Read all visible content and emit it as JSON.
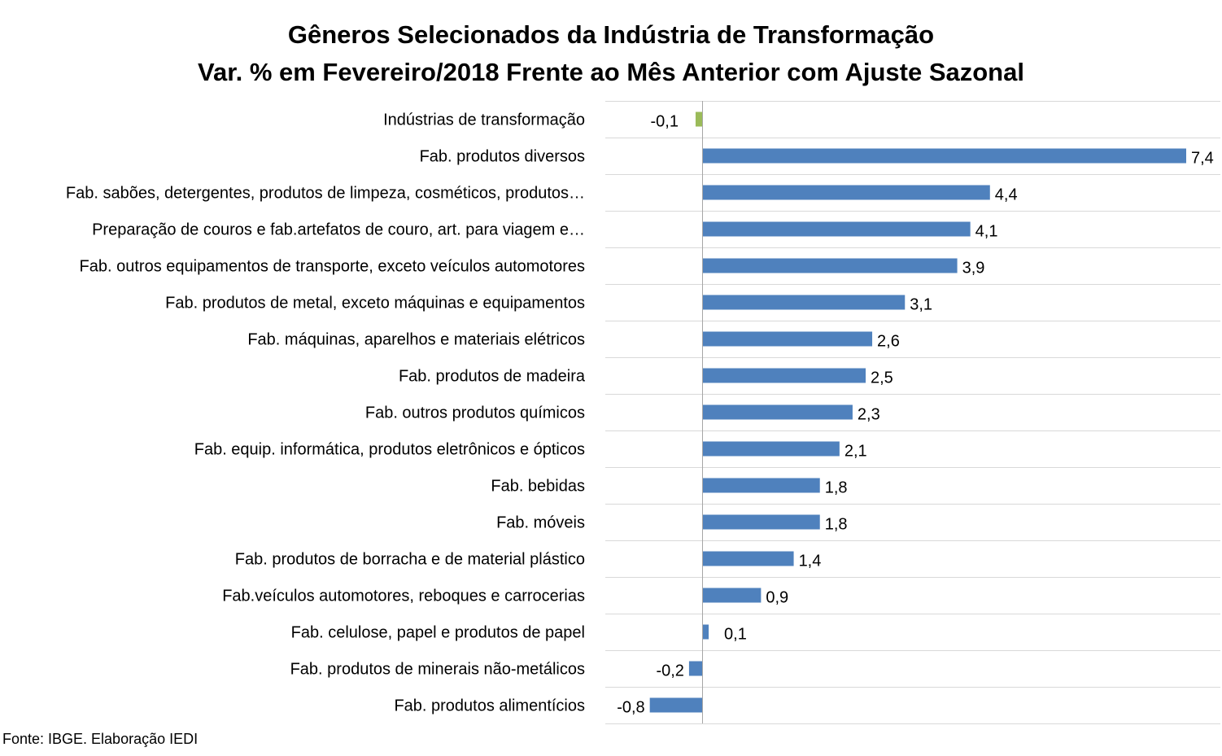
{
  "chart_data": {
    "type": "bar",
    "orientation": "horizontal",
    "title": "Gêneros Selecionados da Indústria de Transformação",
    "subtitle": "Var. % em Fevereiro/2018 Frente ao Mês Anterior com Ajuste Sazonal",
    "xlabel": "",
    "ylabel": "",
    "grid": true,
    "categories": [
      "Indústrias de transformação",
      "Fab. produtos diversos",
      "Fab. sabões, detergentes, produtos de limpeza, cosméticos, produtos…",
      "Preparação de couros e fab.artefatos de couro, art. para viagem e…",
      "Fab. outros equipamentos de transporte, exceto veículos automotores",
      "Fab. produtos de metal, exceto máquinas e equipamentos",
      "Fab. máquinas, aparelhos e materiais elétricos",
      "Fab. produtos de madeira",
      "Fab. outros produtos químicos",
      "Fab. equip. informática, produtos eletrônicos e ópticos",
      "Fab. bebidas",
      "Fab. móveis",
      "Fab. produtos de borracha e de material plástico",
      "Fab.veículos automotores, reboques e carrocerias",
      "Fab. celulose, papel e produtos de papel",
      "Fab. produtos de minerais não-metálicos",
      "Fab. produtos alimentícios"
    ],
    "values": [
      -0.1,
      7.4,
      4.4,
      4.1,
      3.9,
      3.1,
      2.6,
      2.5,
      2.3,
      2.1,
      1.8,
      1.8,
      1.4,
      0.9,
      0.1,
      -0.2,
      -0.8
    ],
    "value_labels": [
      "-0,1",
      "7,4",
      "4,4",
      "4,1",
      "3,9",
      "3,1",
      "2,6",
      "2,5",
      "2,3",
      "2,1",
      "1,8",
      "1,8",
      "1,4",
      "0,9",
      "0,1",
      "-0,2",
      "-0,8"
    ],
    "colors": {
      "highlight": "#9BBB59",
      "bar": "#4F81BD",
      "grid": "#D9D9D9",
      "axis": "#A6A6A6"
    },
    "highlight_index": 0
  },
  "footer": {
    "source": "Fonte: IBGE. Elaboração IEDI"
  }
}
